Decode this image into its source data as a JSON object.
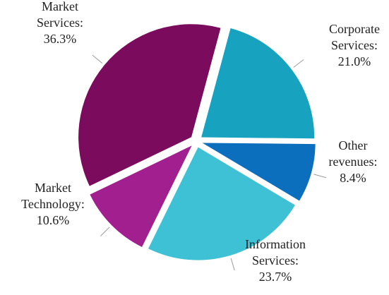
{
  "chart_data": {
    "type": "pie",
    "categories": [
      "Corporate Services:",
      "Other revenues:",
      "Information Services:",
      "Market Technology:",
      "Market Services:"
    ],
    "values": [
      21.0,
      8.4,
      23.7,
      10.6,
      36.3
    ],
    "value_labels": [
      "21.0%",
      "8.4%",
      "23.7%",
      "10.6%",
      "36.3%"
    ],
    "colors": [
      "#17a2c0",
      "#0b6fbd",
      "#3fc1d5",
      "#a11f8e",
      "#7b0b5d"
    ]
  }
}
